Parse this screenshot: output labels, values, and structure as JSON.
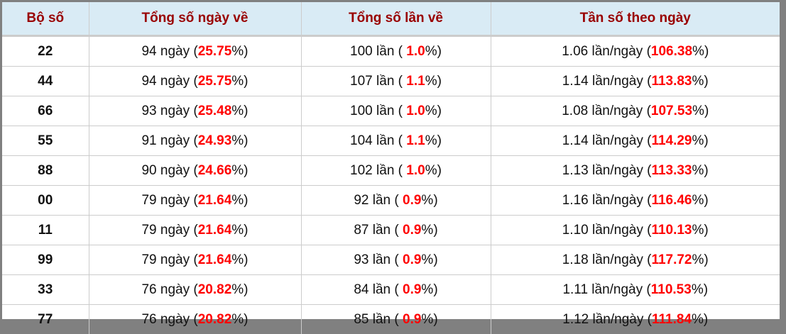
{
  "headers": [
    "Bộ số",
    "Tổng số ngày về",
    "Tổng số lần về",
    "Tần số theo ngày"
  ],
  "colors": {
    "header_text": "#990000",
    "header_bg": "#d9ebf5",
    "highlight": "#ff0000",
    "frame": "#808080"
  },
  "rows": [
    {
      "bo_so": "22",
      "ngay": "94 ngày",
      "ngay_pct": "25.75",
      "lan": "100 lần",
      "lan_pct": "1.0",
      "tan_so": "1.06 lần/ngày",
      "tan_so_pct": "106.38"
    },
    {
      "bo_so": "44",
      "ngay": "94 ngày",
      "ngay_pct": "25.75",
      "lan": "107 lần",
      "lan_pct": "1.1",
      "tan_so": "1.14 lần/ngày",
      "tan_so_pct": "113.83"
    },
    {
      "bo_so": "66",
      "ngay": "93 ngày",
      "ngay_pct": "25.48",
      "lan": "100 lần",
      "lan_pct": "1.0",
      "tan_so": "1.08 lần/ngày",
      "tan_so_pct": "107.53"
    },
    {
      "bo_so": "55",
      "ngay": "91 ngày",
      "ngay_pct": "24.93",
      "lan": "104 lần",
      "lan_pct": "1.1",
      "tan_so": "1.14 lần/ngày",
      "tan_so_pct": "114.29"
    },
    {
      "bo_so": "88",
      "ngay": "90 ngày",
      "ngay_pct": "24.66",
      "lan": "102 lần",
      "lan_pct": "1.0",
      "tan_so": "1.13 lần/ngày",
      "tan_so_pct": "113.33"
    },
    {
      "bo_so": "00",
      "ngay": "79 ngày",
      "ngay_pct": "21.64",
      "lan": "92 lần",
      "lan_pct": "0.9",
      "tan_so": "1.16 lần/ngày",
      "tan_so_pct": "116.46"
    },
    {
      "bo_so": "11",
      "ngay": "79 ngày",
      "ngay_pct": "21.64",
      "lan": "87 lần",
      "lan_pct": "0.9",
      "tan_so": "1.10 lần/ngày",
      "tan_so_pct": "110.13"
    },
    {
      "bo_so": "99",
      "ngay": "79 ngày",
      "ngay_pct": "21.64",
      "lan": "93 lần",
      "lan_pct": "0.9",
      "tan_so": "1.18 lần/ngày",
      "tan_so_pct": "117.72"
    },
    {
      "bo_so": "33",
      "ngay": "76 ngày",
      "ngay_pct": "20.82",
      "lan": "84 lần",
      "lan_pct": "0.9",
      "tan_so": "1.11 lần/ngày",
      "tan_so_pct": "110.53"
    },
    {
      "bo_so": "77",
      "ngay": "76 ngày",
      "ngay_pct": "20.82",
      "lan": "85 lần",
      "lan_pct": "0.9",
      "tan_so": "1.12 lần/ngày",
      "tan_so_pct": "111.84"
    }
  ]
}
